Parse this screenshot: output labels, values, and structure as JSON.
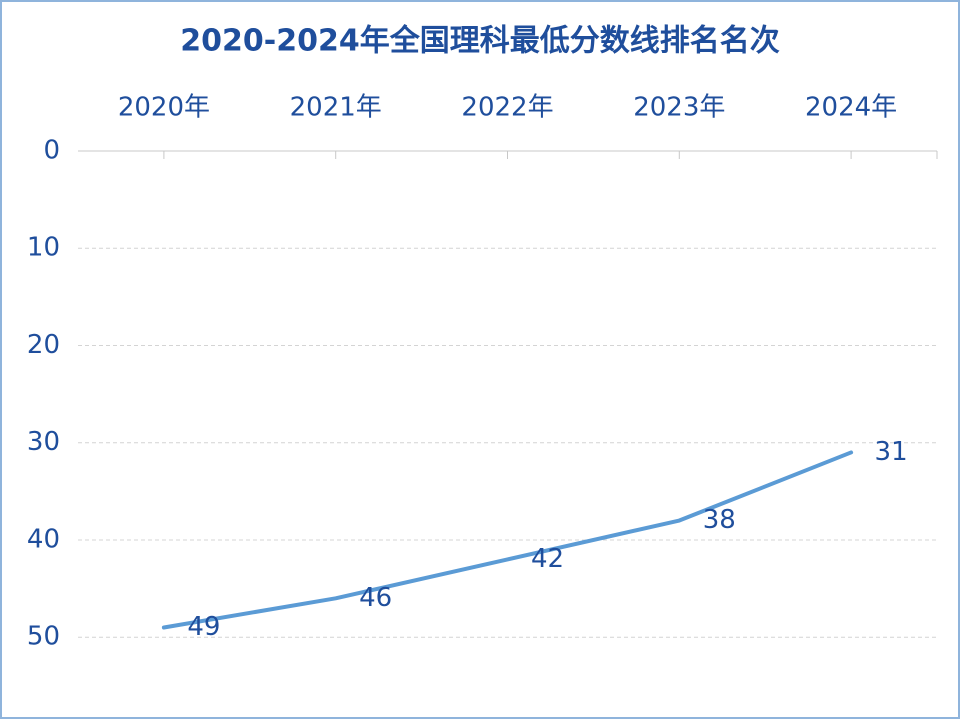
{
  "chart_data": {
    "type": "line",
    "title": "2020-2024年全国理科最低分数线排名名次",
    "categories": [
      "2020年",
      "2021年",
      "2022年",
      "2023年",
      "2024年"
    ],
    "series": [
      {
        "name": "排名名次",
        "color": "#5b9bd5",
        "values": [
          49,
          46,
          42,
          38,
          31
        ]
      }
    ],
    "ylim": [
      0,
      58
    ],
    "yticks": [
      0,
      10,
      20,
      30,
      40,
      50
    ],
    "y_inverted": true,
    "grid": true,
    "data_labels": true,
    "x_axis_position": "top"
  }
}
